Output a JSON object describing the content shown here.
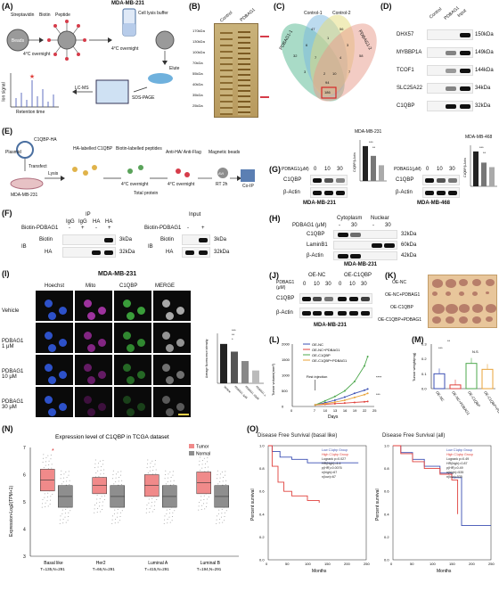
{
  "labels": {
    "A": "(A)",
    "B": "(B)",
    "C": "(C)",
    "D": "(D)",
    "E": "(E)",
    "F": "(F)",
    "G": "(G)",
    "H": "(H)",
    "I": "(I)",
    "J": "(J)",
    "K": "(K)",
    "L": "(L)",
    "M": "(M)",
    "N": "(N)",
    "O": "(O)"
  },
  "panelA": {
    "streptavidin": "Streptavidin",
    "biotin": "Biotin",
    "peptide": "Peptide",
    "beads": "Beads",
    "cell": "MDA-MB-231",
    "lysis": "Cell lysis buffer",
    "overnight": "4°C overnight",
    "elute": "Elute",
    "sds": "SDS-PAGE",
    "lcms": "LC-MS",
    "ion": "Ion signal",
    "rt": "Retention time"
  },
  "panelB": {
    "control": "Control",
    "pdbag": "PDBAG1",
    "markers": [
      "170kDa",
      "130kDa",
      "100kDa",
      "70kDa",
      "55kDa",
      "40kDa",
      "35kDa",
      "25kDa"
    ]
  },
  "panelC": {
    "sets": [
      "PDBAG1-1",
      "Control-1",
      "Control-2",
      "PDBAG1-2"
    ],
    "values": [
      "32",
      "47",
      "56",
      "58",
      "6",
      "1",
      "3",
      "7",
      "4",
      "3",
      "7",
      "2",
      "10",
      "186",
      "94"
    ]
  },
  "panelD": {
    "cols": [
      "Control",
      "PDBAG1",
      "Input"
    ],
    "rows": [
      [
        "DHX57",
        "150kDa"
      ],
      [
        "MYBBP1A",
        "149kDa"
      ],
      [
        "TCOF1",
        "144kDa"
      ],
      [
        "SLC25A22",
        "34kDa"
      ],
      [
        "C1QBP",
        "32kDa"
      ]
    ]
  },
  "panelE": {
    "c1qbp_ha": "C1QBP-HA",
    "plasmid": "Plasmid",
    "transfect": "Transfect",
    "lysis": "Lysis",
    "cell": "MDA-MB-231",
    "ha_lab": "HA-labelled C1QBP",
    "biotin_lab": "Biotin-labelled peptides",
    "anti": "Anti-HA/ Anti-Flag",
    "magnetic": "Magnetic beads",
    "overnight": "4°C overnight",
    "rt2h": "RT 2h",
    "total": "Total protein",
    "coip": "Co-IP",
    "avi": "AVI"
  },
  "panelF": {
    "ip": "IP",
    "input": "Input",
    "igg": "IgG",
    "ha": "HA",
    "bio": "Biotin-PDBAG1",
    "ib": "IB",
    "biotin": "Biotin",
    "hal": "HA",
    "k3": "3kDa",
    "k32": "32kDa",
    "signs": [
      "-",
      "+",
      "-",
      "+"
    ],
    "signs2": [
      "-",
      "+"
    ]
  },
  "panelG": {
    "cell1": "MDA-MB-231",
    "cell2": "MDA-MB-468",
    "dose": "PDBAG1(μM)",
    "doses": [
      "0",
      "10",
      "30"
    ],
    "c1qbp": "C1QBP",
    "actin": "β-Actin",
    "yaxis": "C1QBP/β-Actin",
    "sig": [
      "***",
      "**"
    ],
    "sig2": [
      "***",
      "**"
    ],
    "bars1": [
      1.0,
      0.72,
      0.45
    ],
    "bars2": [
      1.0,
      0.68,
      0.55
    ]
  },
  "panelH": {
    "cyto": "Cytoplasm",
    "nuc": "Nuclear",
    "dose": "PDBAG1 (μM)",
    "doses": [
      "-",
      "30",
      "-",
      "30"
    ],
    "rows": [
      [
        "C1QBP",
        "32kDa"
      ],
      [
        "LaminB1",
        "60kDa"
      ],
      [
        "β-Actin",
        "42kDa"
      ]
    ],
    "cell": "MDA-MB-231"
  },
  "panelI": {
    "title": "MDA-MB-231",
    "cols": [
      "Hoechst",
      "Mito",
      "C1QBP",
      "MERGE"
    ],
    "rows": [
      "Vehicle",
      "PDBAG1\n1 μM",
      "PDBAG1\n10 μM",
      "PDBAG1\n30 μM"
    ],
    "ylabel": "Average fluorescence intensity",
    "sig": [
      "***",
      "**",
      "*"
    ],
    "bars": [
      92,
      74,
      52,
      30
    ],
    "cats": [
      "Vehicle",
      "PDBAG1 1μM",
      "PDBAG1 10μM",
      "PDBAG1 30μM"
    ]
  },
  "panelJ": {
    "oenc": "OE-NC",
    "oec": "OE-C1QBP",
    "dose": "PDBAG1\n(μM)",
    "doses": [
      "0",
      "10",
      "30",
      "0",
      "10",
      "30"
    ],
    "c1qbp": "C1QBP",
    "actin": "β-Actin",
    "cell": "MDA-MB-231"
  },
  "panelK": {
    "rows": [
      "OE-NC",
      "OE-NC+PDBAG1",
      "OE-C1QBP",
      "OE-C1QBP+PDBAG1"
    ]
  },
  "panelL": {
    "chart_data": {
      "type": "line",
      "x": [
        7,
        10,
        13,
        16,
        19,
        22,
        23
      ],
      "series": [
        {
          "name": "OE-NC",
          "color": "#3b4fb3",
          "values": [
            50,
            120,
            200,
            300,
            420,
            520,
            560
          ]
        },
        {
          "name": "OE-NC+PDBAG1",
          "color": "#e0413c",
          "values": [
            50,
            70,
            90,
            110,
            130,
            150,
            160
          ]
        },
        {
          "name": "OE-C1QBP",
          "color": "#4ea84e",
          "values": [
            50,
            180,
            320,
            500,
            800,
            1300,
            1600
          ]
        },
        {
          "name": "OE-C1QBP+PDBAG1",
          "color": "#e8a33a",
          "values": [
            50,
            90,
            140,
            200,
            290,
            380,
            420
          ]
        }
      ],
      "xlabel": "Days",
      "ylabel": "Tumor volume(mm³)",
      "ylim": [
        0,
        2000
      ],
      "xlim": [
        0,
        25
      ],
      "xticks": [
        "0",
        "7",
        "10",
        "13",
        "16",
        "19",
        "22",
        "25"
      ],
      "yticks": [
        "0",
        "500",
        "1000",
        "1500",
        "2000"
      ],
      "annotation": "First injection",
      "sig": [
        "****",
        "***"
      ]
    }
  },
  "panelM": {
    "chart_data": {
      "type": "bar",
      "categories": [
        "OE-NC",
        "OE-NC+PDBAG1",
        "OE-C1QBP",
        "OE-C1QBP+PDBAG1"
      ],
      "values": [
        0.1,
        0.025,
        0.17,
        0.13
      ],
      "colors": [
        "#3b4fb3",
        "#e0413c",
        "#4ea84e",
        "#e8a33a"
      ],
      "ylabel": "Tumor weight(mg)",
      "ylim": [
        0,
        0.3
      ],
      "yticks": [
        "0.0",
        "0.1",
        "0.2",
        "0.3"
      ],
      "sig": [
        "**",
        "***",
        "N.S"
      ]
    }
  },
  "panelN": {
    "chart_data": {
      "type": "box",
      "title": "Expression level of C1QBP in TCGA dataset",
      "ylabel": "Expression-Log2(TPM+1)",
      "categories": [
        "Basal like",
        "Her2",
        "Luminal A",
        "Luminal B"
      ],
      "sub": [
        "T=135,N=291",
        "T=66,N=291",
        "T=415,N=291",
        "T=194,N=291"
      ],
      "legend": [
        "Tumor",
        "Normal"
      ],
      "yticks": [
        "3",
        "4",
        "5",
        "6",
        "7"
      ],
      "tumor": [
        [
          5.4,
          5.8,
          6.2
        ],
        [
          5.3,
          5.6,
          5.9
        ],
        [
          5.2,
          5.6,
          6.0
        ],
        [
          5.3,
          5.7,
          6.1
        ]
      ],
      "normal": [
        [
          4.8,
          5.2,
          5.6
        ],
        [
          4.8,
          5.2,
          5.6
        ],
        [
          4.8,
          5.2,
          5.6
        ],
        [
          4.8,
          5.2,
          5.6
        ]
      ],
      "star": "*"
    }
  },
  "panelO": {
    "left": {
      "title": "Disease Free Survival (basal like)",
      "ylabel": "Percent survival",
      "xlabel": "Months",
      "legend": [
        "Low C1qbp Group",
        "High C1qbp Group",
        "Logrank p=0.027",
        "HR(high)=4.4",
        "p(HR)=0.0076",
        "n(high)=67",
        "n(low)=67"
      ],
      "xticks": [
        "0",
        "50",
        "100",
        "150",
        "200",
        "250"
      ],
      "yticks": [
        "0.0",
        "0.2",
        "0.4",
        "0.6",
        "0.8",
        "1.0"
      ]
    },
    "right": {
      "title": "Disease Free Survival (all)",
      "ylabel": "Percent survival",
      "xlabel": "Months",
      "legend": [
        "Low C1qbp Group",
        "High C1qbp Group",
        "Logrank p=0.49",
        "HR(high)=0.87",
        "p(HR)=0.49",
        "n(high)=535",
        "n(low)=535"
      ],
      "xticks": [
        "0",
        "50",
        "100",
        "150",
        "200",
        "250"
      ],
      "yticks": [
        "0.0",
        "0.2",
        "0.4",
        "0.6",
        "0.8",
        "1.0"
      ]
    }
  }
}
